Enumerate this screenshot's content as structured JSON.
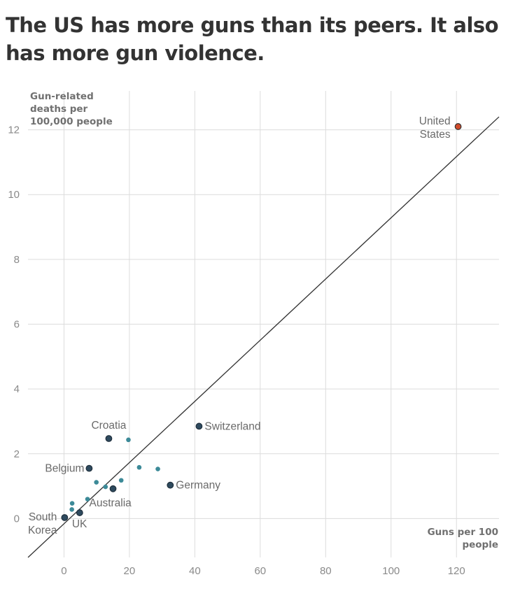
{
  "title": "The US has more guns than its peers. It also has more gun violence.",
  "chart_data": {
    "type": "scatter",
    "title": "The US has more guns than its peers. It also has more gun violence.",
    "xlabel": "Guns per 100 people",
    "ylabel": "Gun-related deaths per 100,000 people",
    "xlim": [
      -11,
      133
    ],
    "ylim": [
      -1.2,
      13.2
    ],
    "xticks": [
      0,
      20,
      40,
      60,
      80,
      100,
      120
    ],
    "yticks": [
      0,
      2,
      4,
      6,
      8,
      10,
      12
    ],
    "grid": true,
    "trendline": {
      "x": [
        -11,
        133
      ],
      "y": [
        -1.2,
        12.4
      ]
    },
    "colors": {
      "highlight": "#d14b2a",
      "labeled": "#2e4a5e",
      "other": "#3c8a98",
      "line": "#333333"
    },
    "points": [
      {
        "x": 120.5,
        "y": 12.1,
        "label": [
          "United",
          "States"
        ],
        "group": "highlight"
      },
      {
        "x": 41.3,
        "y": 2.85,
        "label": [
          "Switzerland"
        ],
        "group": "labeled"
      },
      {
        "x": 13.7,
        "y": 2.47,
        "label": [
          "Croatia"
        ],
        "group": "labeled"
      },
      {
        "x": 7.7,
        "y": 1.55,
        "label": [
          "Belgium"
        ],
        "group": "labeled"
      },
      {
        "x": 32.5,
        "y": 1.03,
        "label": [
          "Germany"
        ],
        "group": "labeled"
      },
      {
        "x": 15.0,
        "y": 0.92,
        "label": [
          "Australia"
        ],
        "group": "labeled"
      },
      {
        "x": 4.8,
        "y": 0.18,
        "label": [
          "UK"
        ],
        "group": "labeled"
      },
      {
        "x": 0.2,
        "y": 0.03,
        "label": [
          "South",
          "Korea"
        ],
        "group": "labeled"
      },
      {
        "x": 19.7,
        "y": 2.43,
        "group": "other"
      },
      {
        "x": 23.0,
        "y": 1.58,
        "group": "other"
      },
      {
        "x": 28.7,
        "y": 1.53,
        "group": "other"
      },
      {
        "x": 17.5,
        "y": 1.18,
        "group": "other"
      },
      {
        "x": 9.9,
        "y": 1.12,
        "group": "other"
      },
      {
        "x": 12.7,
        "y": 0.98,
        "group": "other"
      },
      {
        "x": 7.2,
        "y": 0.6,
        "group": "other"
      },
      {
        "x": 2.5,
        "y": 0.47,
        "group": "other"
      },
      {
        "x": 2.4,
        "y": 0.28,
        "group": "other"
      }
    ]
  }
}
